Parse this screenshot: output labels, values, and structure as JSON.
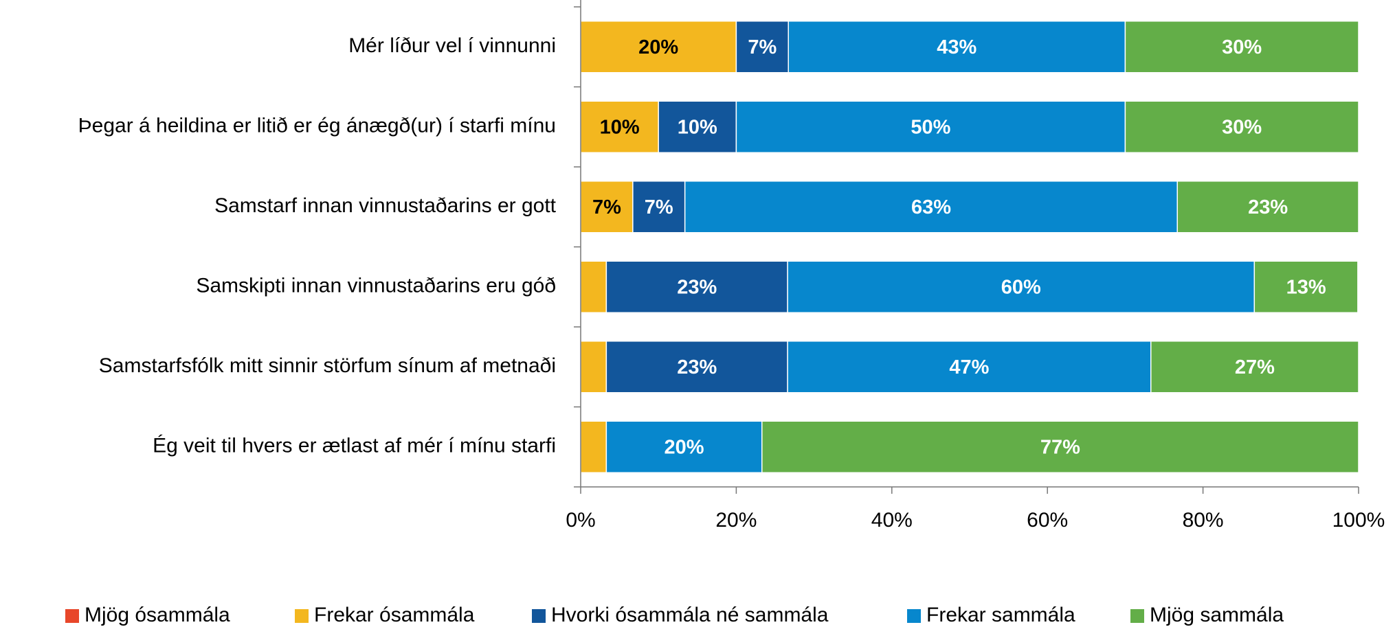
{
  "chart_data": {
    "type": "stacked-barh",
    "categories": [
      "Mér líður vel í vinnunni",
      "Þegar á heildina er litið er ég ánægð(ur) í starfi mínu",
      "Samstarf innan vinnustaðarins er gott",
      "Samskipti innan vinnustaðarins eru góð",
      "Samstarfsfólk mitt sinnir störfum sínum af metnaði",
      "Ég veit til hvers er ætlast af mér í mínu starfi"
    ],
    "series": [
      {
        "name": "Mjög ósammála",
        "color": "#e8472a",
        "values": [
          0,
          0,
          0,
          0,
          0,
          0
        ],
        "value_labels": [
          null,
          null,
          null,
          null,
          null,
          null
        ]
      },
      {
        "name": "Frekar ósammála",
        "color": "#f3b71f",
        "values": [
          20,
          10,
          6.7,
          3.3,
          3.3,
          3.3
        ],
        "value_labels": [
          "20%",
          "10%",
          "7%",
          null,
          null,
          null
        ]
      },
      {
        "name": "Hvorki ósammála né sammála",
        "color": "#12569b",
        "values": [
          6.7,
          10,
          6.7,
          23.3,
          23.3,
          0
        ],
        "value_labels": [
          "7%",
          "10%",
          "7%",
          "23%",
          "23%",
          null
        ]
      },
      {
        "name": "Frekar sammála",
        "color": "#0787cd",
        "values": [
          43.3,
          50,
          63.3,
          60,
          46.7,
          20
        ],
        "value_labels": [
          "43%",
          "50%",
          "63%",
          "60%",
          "47%",
          "20%"
        ]
      },
      {
        "name": "Mjög sammála",
        "color": "#63ae48",
        "values": [
          30,
          30,
          23.3,
          13.3,
          26.7,
          76.7
        ],
        "value_labels": [
          "30%",
          "30%",
          "23%",
          "13%",
          "27%",
          "77%"
        ]
      }
    ],
    "xlim": [
      0,
      100
    ],
    "xticks": [
      {
        "value": 0,
        "label": "0%"
      },
      {
        "value": 20,
        "label": "20%"
      },
      {
        "value": 40,
        "label": "40%"
      },
      {
        "value": 60,
        "label": "60%"
      },
      {
        "value": 80,
        "label": "80%"
      },
      {
        "value": 100,
        "label": "100%"
      }
    ],
    "legend": "bottom"
  }
}
